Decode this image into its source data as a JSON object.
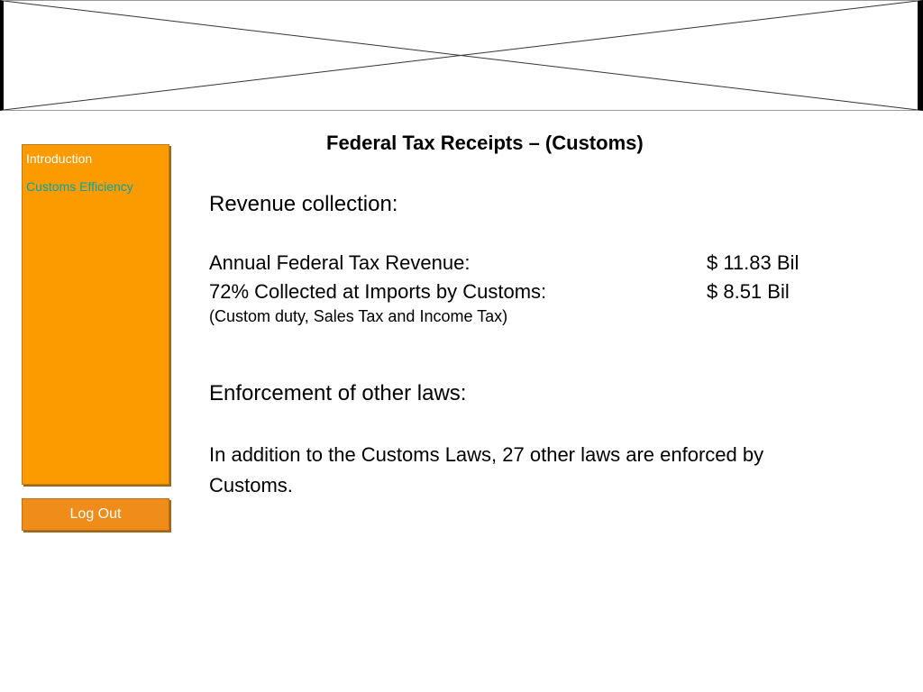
{
  "sidebar": {
    "items": [
      {
        "label": "Introduction"
      },
      {
        "label": "Customs Efficiency"
      }
    ],
    "logout_label": "Log Out"
  },
  "main": {
    "title": "Federal Tax Receipts – (Customs)",
    "revenue_heading": "Revenue collection:",
    "rows": [
      {
        "label": "Annual Federal Tax Revenue:",
        "amount": "$ 11.83 Bil"
      },
      {
        "label": "72% Collected at Imports by Customs:",
        "amount": "$ 8.51 Bil"
      }
    ],
    "note": "(Custom duty, Sales Tax and Income Tax)",
    "enforcement_heading": "Enforcement of other laws:",
    "enforcement_text": "In addition to the Customs Laws, 27 other laws are enforced by Customs."
  },
  "colors": {
    "sidebar_bg": "#fb9b00",
    "logout_bg": "#f08c1a",
    "link_active": "#00a6a6",
    "link_default": "#ffffff"
  }
}
